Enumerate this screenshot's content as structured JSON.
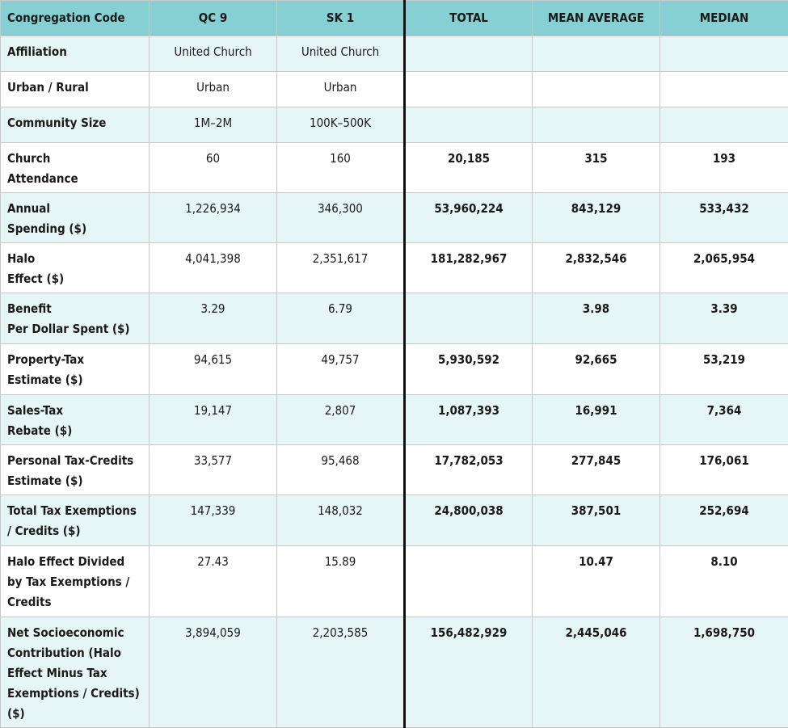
{
  "table": {
    "header": [
      "Congregation Code",
      "QC 9",
      "SK 1",
      "TOTAL",
      "MEAN AVERAGE",
      "MEDIAN"
    ],
    "rows": [
      [
        "Affiliation",
        "United Church",
        "United Church",
        null,
        null,
        null
      ],
      [
        "Urban / Rural",
        "Urban",
        "Urban",
        null,
        null,
        null
      ],
      [
        "Community Size",
        "1M–2M",
        "100K–500K",
        null,
        null,
        null
      ],
      [
        "Church\nAttendance",
        "60",
        "160",
        "20,185",
        "315",
        "193"
      ],
      [
        "Annual\nSpending ($)",
        "1,226,934",
        "346,300",
        "53,960,224",
        "843,129",
        "533,432"
      ],
      [
        "Halo\nEffect ($)",
        "4,041,398",
        "2,351,617",
        "181,282,967",
        "2,832,546",
        "2,065,954"
      ],
      [
        "Benefit\nPer Dollar Spent ($)",
        "3.29",
        "6.79",
        null,
        "3.98",
        "3.39"
      ],
      [
        "Property-Tax\nEstimate ($)",
        "94,615",
        "49,757",
        "5,930,592",
        "92,665",
        "53,219"
      ],
      [
        "Sales-Tax\nRebate ($)",
        "19,147",
        "2,807",
        "1,087,393",
        "16,991",
        "7,364"
      ],
      [
        "Personal Tax-Credits\nEstimate ($)",
        "33,577",
        "95,468",
        "17,782,053",
        "277,845",
        "176,061"
      ],
      [
        "Total Tax Exemptions\n/ Credits ($)",
        "147,339",
        "148,032",
        "24,800,038",
        "387,501",
        "252,694"
      ],
      [
        "Halo Effect Divided\nby Tax Exemptions /\nCredits",
        "27.43",
        "15.89",
        null,
        "10.47",
        "8.10"
      ],
      [
        "Net Socioeconomic\nContribution (Halo\nEffect Minus Tax\nExemptions / Credits)\n($)",
        "3,894,059",
        "2,203,585",
        "156,482,929",
        "2,445,046",
        "1,698,750"
      ]
    ]
  }
}
